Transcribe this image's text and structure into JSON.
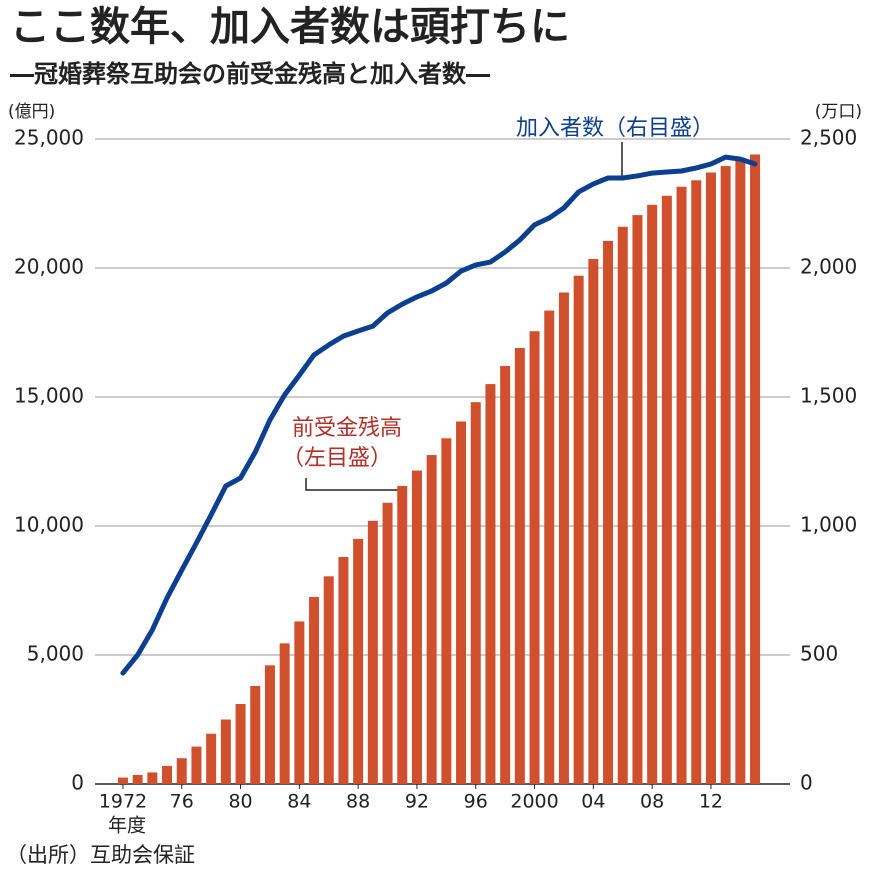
{
  "chart_data": {
    "type": "bar",
    "title": "ここ数年、加入者数は頭打ちに",
    "subtitle": "―冠婚葬祭互助会の前受金残高と加入者数―",
    "ylabel": "(億円)",
    "y2label": "(万口)",
    "xlabel": "年度",
    "source": "（出所）互助会保証",
    "categories": [
      "1972",
      null,
      null,
      null,
      "76",
      null,
      null,
      null,
      "80",
      null,
      null,
      null,
      "84",
      null,
      null,
      null,
      "88",
      null,
      null,
      null,
      "92",
      null,
      null,
      null,
      "96",
      null,
      null,
      null,
      "2000",
      null,
      null,
      null,
      "04",
      null,
      null,
      null,
      "08",
      null,
      null,
      null,
      "12",
      null,
      null,
      null
    ],
    "series": [
      {
        "name": "前受金残高",
        "note": "（左目盛）",
        "type": "bar",
        "color": "#d0502e",
        "values": [
          250,
          350,
          450,
          700,
          1000,
          1450,
          1950,
          2500,
          3100,
          3800,
          4600,
          5450,
          6300,
          7250,
          8050,
          8800,
          9500,
          10200,
          10900,
          11550,
          12150,
          12750,
          13400,
          14050,
          14800,
          15500,
          16200,
          16900,
          17550,
          18350,
          19050,
          19700,
          20350,
          21050,
          21600,
          22050,
          22450,
          22800,
          23150,
          23400,
          23700,
          23950,
          24150,
          24400
        ]
      },
      {
        "name": "加入者数（右目盛）",
        "type": "line",
        "axis": "y2",
        "color": "#0c3f8f",
        "values": [
          430,
          500,
          597,
          721,
          829,
          934,
          1043,
          1155,
          1186,
          1287,
          1411,
          1508,
          1585,
          1663,
          1702,
          1736,
          1756,
          1775,
          1826,
          1860,
          1888,
          1911,
          1942,
          1988,
          2012,
          2023,
          2062,
          2109,
          2167,
          2194,
          2233,
          2295,
          2326,
          2349,
          2349,
          2357,
          2368,
          2372,
          2376,
          2388,
          2403,
          2430,
          2422,
          2403
        ]
      }
    ],
    "ylim": [
      0,
      25000
    ],
    "yticks": [
      0,
      {
        "value": 5000,
        "label": "5,000"
      },
      {
        "value": 10000,
        "label": "10,000"
      },
      {
        "value": 15000,
        "label": "15,000"
      },
      {
        "value": 20000,
        "label": "20,000"
      },
      {
        "value": 25000,
        "label": "25,000"
      }
    ],
    "y2lim": [
      0,
      2500
    ],
    "y2ticks": [
      0,
      500,
      {
        "value": 1000,
        "label": "1,000"
      },
      {
        "value": 1500,
        "label": "1,500"
      },
      {
        "value": 2000,
        "label": "2,000"
      },
      {
        "value": 2500,
        "label": "2,500"
      }
    ],
    "grid": true
  }
}
